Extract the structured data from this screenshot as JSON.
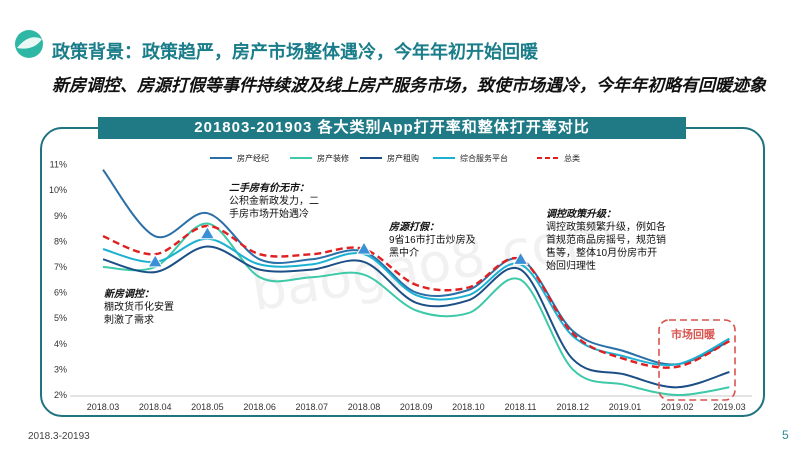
{
  "header": {
    "title": "政策背景：政策趋严，房产市场整体遇冷，今年年初开始回暖",
    "subtitle": "新房调控、房源打假等事件持续波及线上房产服务市场，致使市场遇冷，今年年初略有回暖迹象"
  },
  "footer": {
    "date_range": "2018.3-20193",
    "page": "5"
  },
  "watermark": "baogao8.com",
  "colors": {
    "brand": "#1f7a86",
    "series_colors": [
      "#2a6fa8",
      "#3ec9a8",
      "#1c4f86",
      "#1cb1d2",
      "#e02020"
    ],
    "market_badge": "#d9534f"
  },
  "chart_data": {
    "type": "line",
    "title": "201803-201903 各大类别App打开率和整体打开率对比",
    "xlabel": "",
    "ylabel": "",
    "categories": [
      "2018.03",
      "2018.04",
      "2018.05",
      "2018.06",
      "2018.07",
      "2018.08",
      "2018.09",
      "2018.10",
      "2018.11",
      "2018.12",
      "2019.01",
      "2019.02",
      "2019.03"
    ],
    "yticks": [
      "2%",
      "3%",
      "4%",
      "5%",
      "6%",
      "7%",
      "8%",
      "9%",
      "10%",
      "11%"
    ],
    "ylim": [
      2,
      11
    ],
    "grid": false,
    "legend_position": "top",
    "series": [
      {
        "name": "房产经纪",
        "values": [
          10.8,
          8.2,
          9.1,
          7.3,
          7.3,
          7.6,
          6.0,
          6.1,
          7.3,
          4.5,
          3.7,
          3.2,
          4.1
        ]
      },
      {
        "name": "房产装修",
        "values": [
          7.0,
          7.0,
          8.7,
          6.6,
          6.6,
          6.7,
          5.3,
          5.2,
          6.5,
          3.0,
          2.4,
          2.0,
          2.3
        ]
      },
      {
        "name": "房产租购",
        "values": [
          7.3,
          6.8,
          7.8,
          6.9,
          6.9,
          7.2,
          5.6,
          5.7,
          6.9,
          3.4,
          2.8,
          2.3,
          2.9
        ]
      },
      {
        "name": "综合服务平台",
        "values": [
          7.7,
          7.2,
          8.1,
          7.1,
          7.1,
          7.5,
          5.9,
          5.9,
          7.1,
          4.3,
          3.5,
          3.2,
          4.2
        ]
      },
      {
        "name": "总类",
        "values": [
          8.2,
          7.5,
          8.6,
          7.5,
          7.5,
          7.7,
          6.3,
          6.2,
          7.3,
          4.4,
          3.4,
          3.1,
          4.1
        ]
      }
    ],
    "markers": [
      {
        "x": "2018.04",
        "y": 7.2
      },
      {
        "x": "2018.05",
        "y": 8.3
      },
      {
        "x": "2018.08",
        "y": 7.7
      },
      {
        "x": "2018.11",
        "y": 7.3
      }
    ],
    "annotations": [
      {
        "x": "2018.03",
        "title": "新房调控：",
        "lines": [
          "棚改货币化安置",
          "刺激了需求"
        ]
      },
      {
        "x": "2018.05",
        "title": "二手房有价无市：",
        "lines": [
          "公积金新政发力，二",
          "手房市场开始遇冷"
        ]
      },
      {
        "x": "2018.09",
        "title": "房源打假：",
        "lines": [
          "9省16市打击炒房及",
          "黑中介"
        ]
      },
      {
        "x": "2018.12",
        "title": "调控政策升级：",
        "lines": [
          "调控政策频繁升级，例如各",
          "首规范商品房摇号，规范销",
          "售等，整体10月份房市开",
          "始回归理性"
        ]
      }
    ],
    "highlight_label": "市场回暖"
  }
}
